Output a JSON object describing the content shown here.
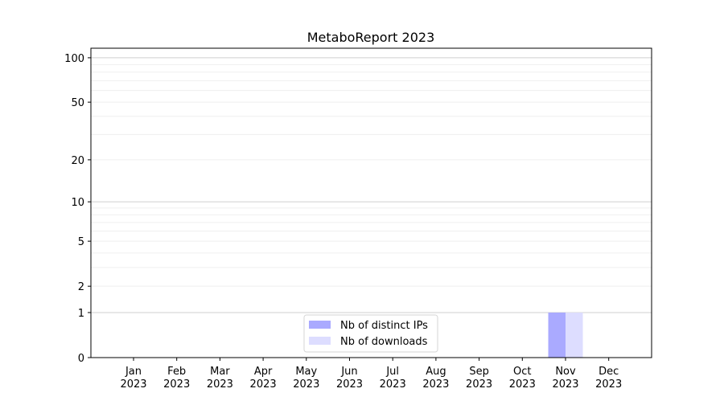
{
  "chart_data": {
    "type": "bar",
    "title": "MetaboReport 2023",
    "xlabel": "",
    "ylabel": "",
    "yscale": "log10(1+y)",
    "ylim": [
      0,
      116
    ],
    "yticks": [
      0,
      1,
      2,
      5,
      10,
      20,
      50,
      100
    ],
    "ytick_labels": [
      "0",
      "1",
      "2",
      "5",
      "10",
      "20",
      "50",
      "100"
    ],
    "grid": true,
    "legend_position": "lower-center",
    "categories": [
      [
        "Jan",
        "2023"
      ],
      [
        "Feb",
        "2023"
      ],
      [
        "Mar",
        "2023"
      ],
      [
        "Apr",
        "2023"
      ],
      [
        "May",
        "2023"
      ],
      [
        "Jun",
        "2023"
      ],
      [
        "Jul",
        "2023"
      ],
      [
        "Aug",
        "2023"
      ],
      [
        "Sep",
        "2023"
      ],
      [
        "Oct",
        "2023"
      ],
      [
        "Nov",
        "2023"
      ],
      [
        "Dec",
        "2023"
      ]
    ],
    "series": [
      {
        "name": "Nb of distinct IPs",
        "color": "#aaaaff",
        "values": [
          0,
          0,
          0,
          0,
          0,
          0,
          0,
          0,
          0,
          0,
          1,
          0
        ]
      },
      {
        "name": "Nb of downloads",
        "color": "#ddddff",
        "values": [
          0,
          0,
          0,
          0,
          0,
          0,
          0,
          0,
          0,
          0,
          1,
          0
        ]
      }
    ]
  }
}
